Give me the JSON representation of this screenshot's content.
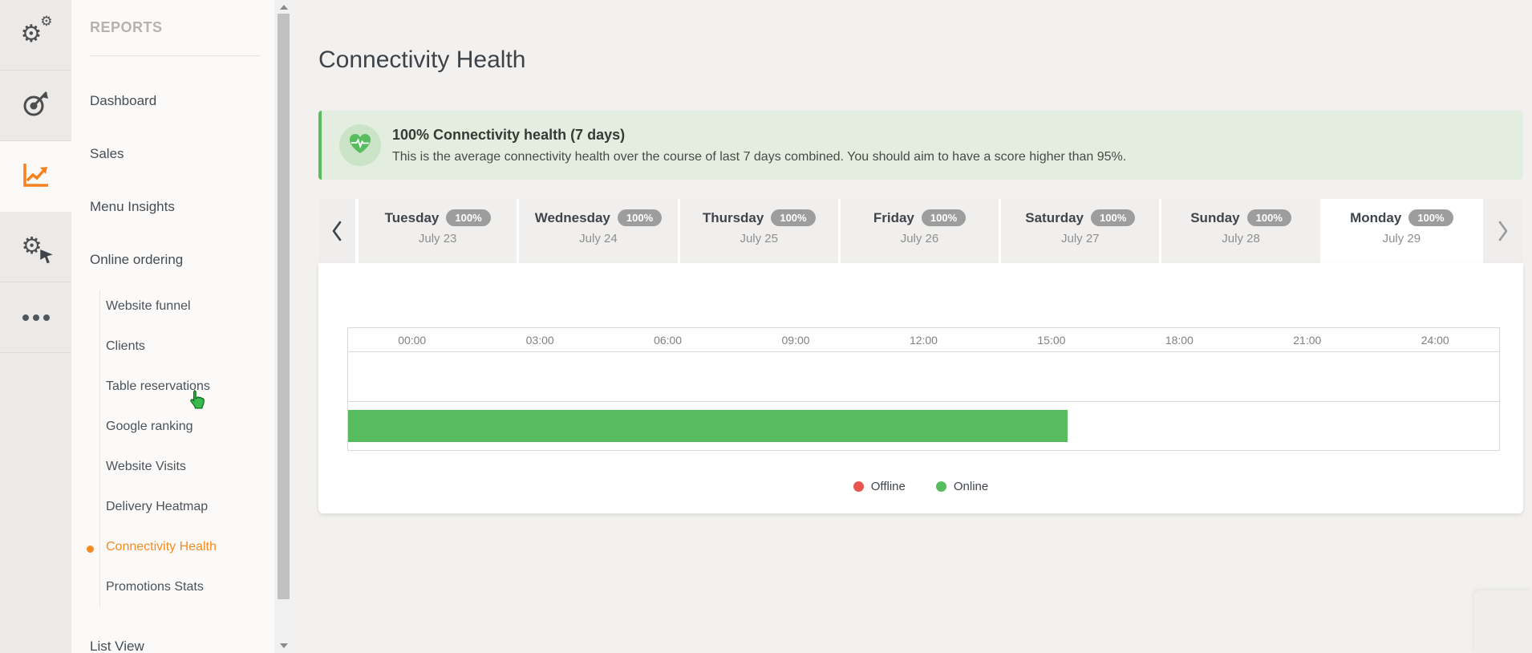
{
  "icon_rail": {
    "items": [
      {
        "id": "settings",
        "icon": "gears-icon",
        "active": false
      },
      {
        "id": "targets",
        "icon": "target-icon",
        "active": false
      },
      {
        "id": "reports",
        "icon": "line-chart-icon",
        "active": true
      },
      {
        "id": "automation",
        "icon": "gear-cursor-icon",
        "active": false
      },
      {
        "id": "more",
        "icon": "ellipsis-icon",
        "active": false
      }
    ],
    "active_accent": "#f6821f"
  },
  "sidebar": {
    "section_title": "REPORTS",
    "items": [
      {
        "label": "Dashboard"
      },
      {
        "label": "Sales"
      },
      {
        "label": "Menu Insights"
      },
      {
        "label": "Online ordering"
      }
    ],
    "subitems": [
      {
        "label": "Website funnel",
        "active": false
      },
      {
        "label": "Clients",
        "active": false
      },
      {
        "label": "Table reservations",
        "active": false
      },
      {
        "label": "Google ranking",
        "active": false
      },
      {
        "label": "Website Visits",
        "active": false
      },
      {
        "label": "Delivery Heatmap",
        "active": false
      },
      {
        "label": "Connectivity Health",
        "active": true
      },
      {
        "label": "Promotions Stats",
        "active": false
      }
    ],
    "bottom_item": {
      "label": "List View"
    },
    "active_color": "#f68b1f"
  },
  "main": {
    "page_title": "Connectivity Health",
    "banner": {
      "icon": "heart-pulse-icon",
      "headline": "100% Connectivity health (7 days)",
      "description": "This is the average connectivity health over the course of last 7 days combined. You should aim to have a score higher than 95%.",
      "accent_color": "#58bd5f",
      "background_color": "#e3eee0"
    },
    "day_tabs": [
      {
        "day": "Tuesday",
        "badge": "100%",
        "date": "July 23",
        "active": false
      },
      {
        "day": "Wednesday",
        "badge": "100%",
        "date": "July 24",
        "active": false
      },
      {
        "day": "Thursday",
        "badge": "100%",
        "date": "July 25",
        "active": false
      },
      {
        "day": "Friday",
        "badge": "100%",
        "date": "July 26",
        "active": false
      },
      {
        "day": "Saturday",
        "badge": "100%",
        "date": "July 27",
        "active": false
      },
      {
        "day": "Sunday",
        "badge": "100%",
        "date": "July 28",
        "active": false
      },
      {
        "day": "Monday",
        "badge": "100%",
        "date": "July 29",
        "active": true
      }
    ],
    "chart_data": {
      "type": "timeline-bar",
      "x_ticks": [
        "00:00",
        "03:00",
        "06:00",
        "09:00",
        "12:00",
        "15:00",
        "18:00",
        "21:00",
        "24:00"
      ],
      "x_range_hours": [
        0,
        24
      ],
      "rows": [
        {
          "name": "Offline",
          "segments": []
        },
        {
          "name": "Online",
          "segments": [
            {
              "start_hour": 0,
              "end_hour": 15,
              "color": "#56bc5d"
            }
          ]
        }
      ],
      "legend": [
        {
          "label": "Offline",
          "color": "#e8564e"
        },
        {
          "label": "Online",
          "color": "#56bc5d"
        }
      ],
      "grid": false,
      "legend_position": "bottom-center"
    }
  }
}
